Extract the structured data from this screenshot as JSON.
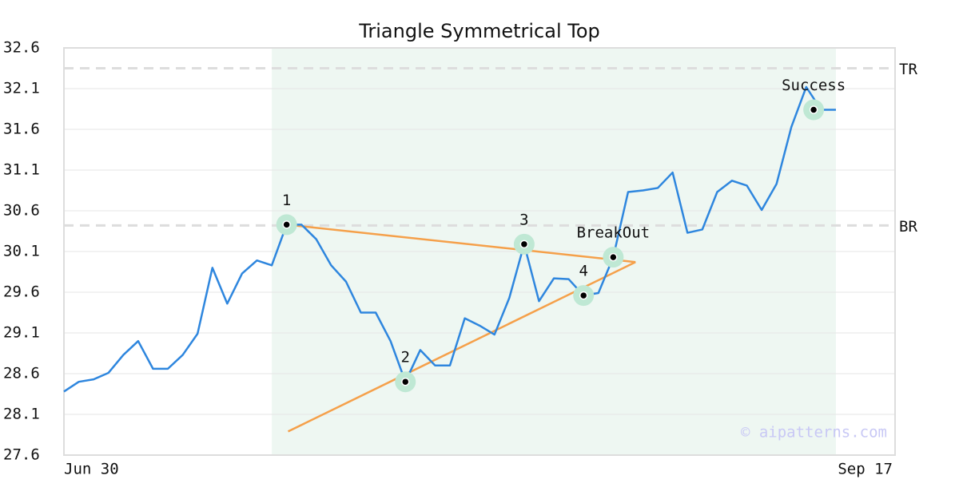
{
  "chart_data": {
    "type": "line",
    "title": "Triangle Symmetrical Top",
    "categories": [
      "Jun 30",
      null,
      null,
      null,
      null,
      null,
      null,
      null,
      null,
      null,
      null,
      null,
      null,
      null,
      null,
      null,
      null,
      null,
      null,
      null,
      null,
      null,
      null,
      null,
      null,
      null,
      null,
      null,
      null,
      null,
      null,
      null,
      null,
      null,
      null,
      null,
      null,
      null,
      null,
      null,
      null,
      null,
      null,
      null,
      null,
      null,
      null,
      null,
      null,
      null,
      null,
      null,
      "Sep 17"
    ],
    "series": [
      {
        "color": "#2e86de",
        "values": [
          28.38,
          28.5,
          28.53,
          28.61,
          28.83,
          29.0,
          28.66,
          28.66,
          28.83,
          29.09,
          29.9,
          29.46,
          29.83,
          29.99,
          29.93,
          30.43,
          30.43,
          30.25,
          29.93,
          29.73,
          29.35,
          29.35,
          29.0,
          28.5,
          28.89,
          28.7,
          28.7,
          29.28,
          29.19,
          29.08,
          29.53,
          30.19,
          29.49,
          29.77,
          29.76,
          29.56,
          29.59,
          30.03,
          30.83,
          30.85,
          30.88,
          31.07,
          30.33,
          30.37,
          30.83,
          30.97,
          30.91,
          30.61,
          30.93,
          31.63,
          32.12,
          31.84,
          31.84
        ]
      }
    ],
    "ylim": [
      27.6,
      32.6
    ],
    "yticks": [
      27.6,
      28.1,
      28.6,
      29.1,
      29.6,
      30.1,
      30.6,
      31.1,
      31.6,
      32.1,
      32.6
    ],
    "grid": true,
    "highlight": {
      "x": [
        14,
        52
      ],
      "color": "#eef7f2"
    },
    "reference_lines": [
      {
        "label": "TR",
        "value": 32.35
      },
      {
        "label": "BR",
        "value": 30.42
      }
    ],
    "trend_lines": {
      "color": "#f5a04a",
      "lines": [
        {
          "x": [
            15,
            38.5
          ],
          "values": [
            30.43,
            29.97
          ]
        },
        {
          "x": [
            15.1,
            38.5
          ],
          "values": [
            27.89,
            29.97
          ]
        }
      ]
    },
    "annotations": [
      {
        "label": "1",
        "x": 15,
        "value": 30.43
      },
      {
        "label": "2",
        "x": 23,
        "value": 28.5
      },
      {
        "label": "3",
        "x": 31,
        "value": 30.19
      },
      {
        "label": "4",
        "x": 35,
        "value": 29.56
      },
      {
        "label": "BreakOut",
        "x": 37,
        "value": 30.03
      },
      {
        "label": "Success",
        "x": 50.5,
        "value": 31.84
      }
    ],
    "watermark": "© aipatterns.com"
  }
}
